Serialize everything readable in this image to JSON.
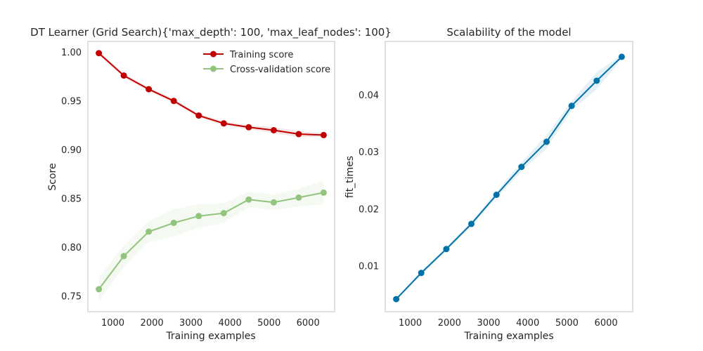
{
  "chart_data": [
    {
      "type": "line",
      "title": "DT Learner (Grid Search){'max_depth': 100, 'max_leaf_nodes': 100}",
      "xlabel": "Training examples",
      "ylabel": "Score",
      "xlim": [
        360,
        6680
      ],
      "ylim": [
        0.734,
        1.011
      ],
      "xticks": [
        1000,
        2000,
        3000,
        4000,
        5000,
        6000
      ],
      "yticks": [
        0.75,
        0.8,
        0.85,
        0.9,
        0.95,
        1.0
      ],
      "xtick_labels": [
        "1000",
        "2000",
        "3000",
        "4000",
        "5000",
        "6000"
      ],
      "ytick_labels": [
        "0.75",
        "0.80",
        "0.85",
        "0.90",
        "0.95",
        "1.00"
      ],
      "grid": false,
      "legend_position": "top-right",
      "x": [
        640,
        1280,
        1920,
        2560,
        3200,
        3840,
        4480,
        5120,
        5760,
        6400
      ],
      "series": [
        {
          "name": "Training score",
          "color": "#c00000",
          "values": [
            0.999,
            0.976,
            0.962,
            0.95,
            0.935,
            0.927,
            0.923,
            0.92,
            0.916,
            0.915
          ],
          "band": [
            0.002,
            0.002,
            0.002,
            0.002,
            0.002,
            0.002,
            0.002,
            0.003,
            0.003,
            0.002
          ]
        },
        {
          "name": "Cross-validation score",
          "color": "#93c47d",
          "values": [
            0.757,
            0.791,
            0.816,
            0.825,
            0.832,
            0.835,
            0.849,
            0.846,
            0.851,
            0.856
          ],
          "band": [
            0.012,
            0.011,
            0.011,
            0.014,
            0.012,
            0.01,
            0.008,
            0.008,
            0.009,
            0.012
          ]
        }
      ]
    },
    {
      "type": "line",
      "title": "Scalability of the model",
      "xlabel": "Training examples",
      "ylabel": "fit_times",
      "xlim": [
        360,
        6680
      ],
      "ylim": [
        0.002,
        0.0494
      ],
      "xticks": [
        1000,
        2000,
        3000,
        4000,
        5000,
        6000
      ],
      "yticks": [
        0.01,
        0.02,
        0.03,
        0.04
      ],
      "xtick_labels": [
        "1000",
        "2000",
        "3000",
        "4000",
        "5000",
        "6000"
      ],
      "ytick_labels": [
        "0.01",
        "0.02",
        "0.03",
        "0.04"
      ],
      "grid": false,
      "x": [
        640,
        1280,
        1920,
        2560,
        3200,
        3840,
        4480,
        5120,
        5760,
        6400
      ],
      "series": [
        {
          "color": "#0072a8",
          "values": [
            0.0042,
            0.0088,
            0.013,
            0.0174,
            0.0225,
            0.0274,
            0.0318,
            0.0381,
            0.0425,
            0.0467
          ],
          "band": [
            0.0002,
            0.0003,
            0.0003,
            0.0004,
            0.0005,
            0.0008,
            0.0012,
            0.0008,
            0.0015,
            0.0004
          ]
        }
      ]
    }
  ]
}
